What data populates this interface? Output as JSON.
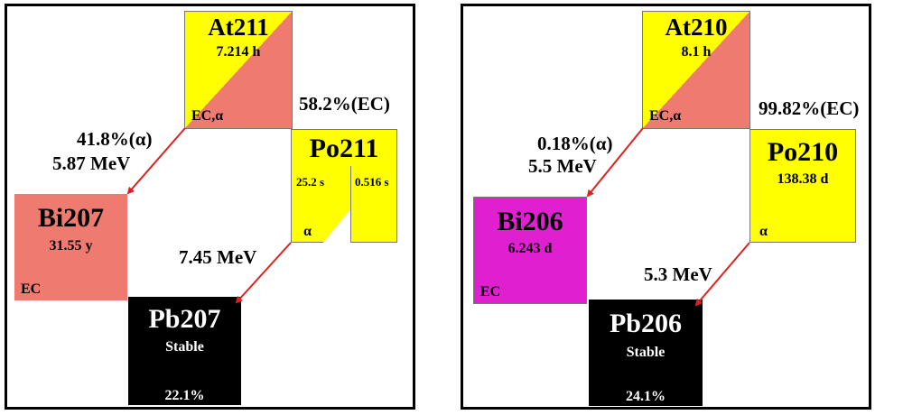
{
  "panels": [
    {
      "parent": {
        "name": "At211",
        "half_life": "7.214 h",
        "modes": "EC,α",
        "color_a": "#ffff00",
        "color_b": "#ee7a70"
      },
      "branch_ec": "58.2%(EC)",
      "branch_alpha": "41.8%(α)",
      "alpha_energy": "5.87 MeV",
      "daughter_ec": {
        "name": "Po211",
        "half_life_1": "25.2 s",
        "half_life_2": "0.516 s",
        "mode": "α",
        "color": "#ffff00"
      },
      "daughter_alpha": {
        "name": "Bi207",
        "half_life": "31.55 y",
        "mode": "EC",
        "color": "#ee7a70"
      },
      "po_alpha_energy": "7.45 MeV",
      "final": {
        "name": "Pb207",
        "status": "Stable",
        "abundance": "22.1%",
        "color": "#000000"
      }
    },
    {
      "parent": {
        "name": "At210",
        "half_life": "8.1 h",
        "modes": "EC,α",
        "color_a": "#ffff00",
        "color_b": "#ee7a70"
      },
      "branch_ec": "99.82%(EC)",
      "branch_alpha": "0.18%(α)",
      "alpha_energy": "5.5 MeV",
      "daughter_ec": {
        "name": "Po210",
        "half_life": "138.38 d",
        "mode": "α",
        "color": "#ffff00"
      },
      "daughter_alpha": {
        "name": "Bi206",
        "half_life": "6.243 d",
        "mode": "EC",
        "color": "#e020d0"
      },
      "po_alpha_energy": "5.3 MeV",
      "final": {
        "name": "Pb206",
        "status": "Stable",
        "abundance": "24.1%",
        "color": "#000000"
      }
    }
  ],
  "arrow_color": "#e02020"
}
